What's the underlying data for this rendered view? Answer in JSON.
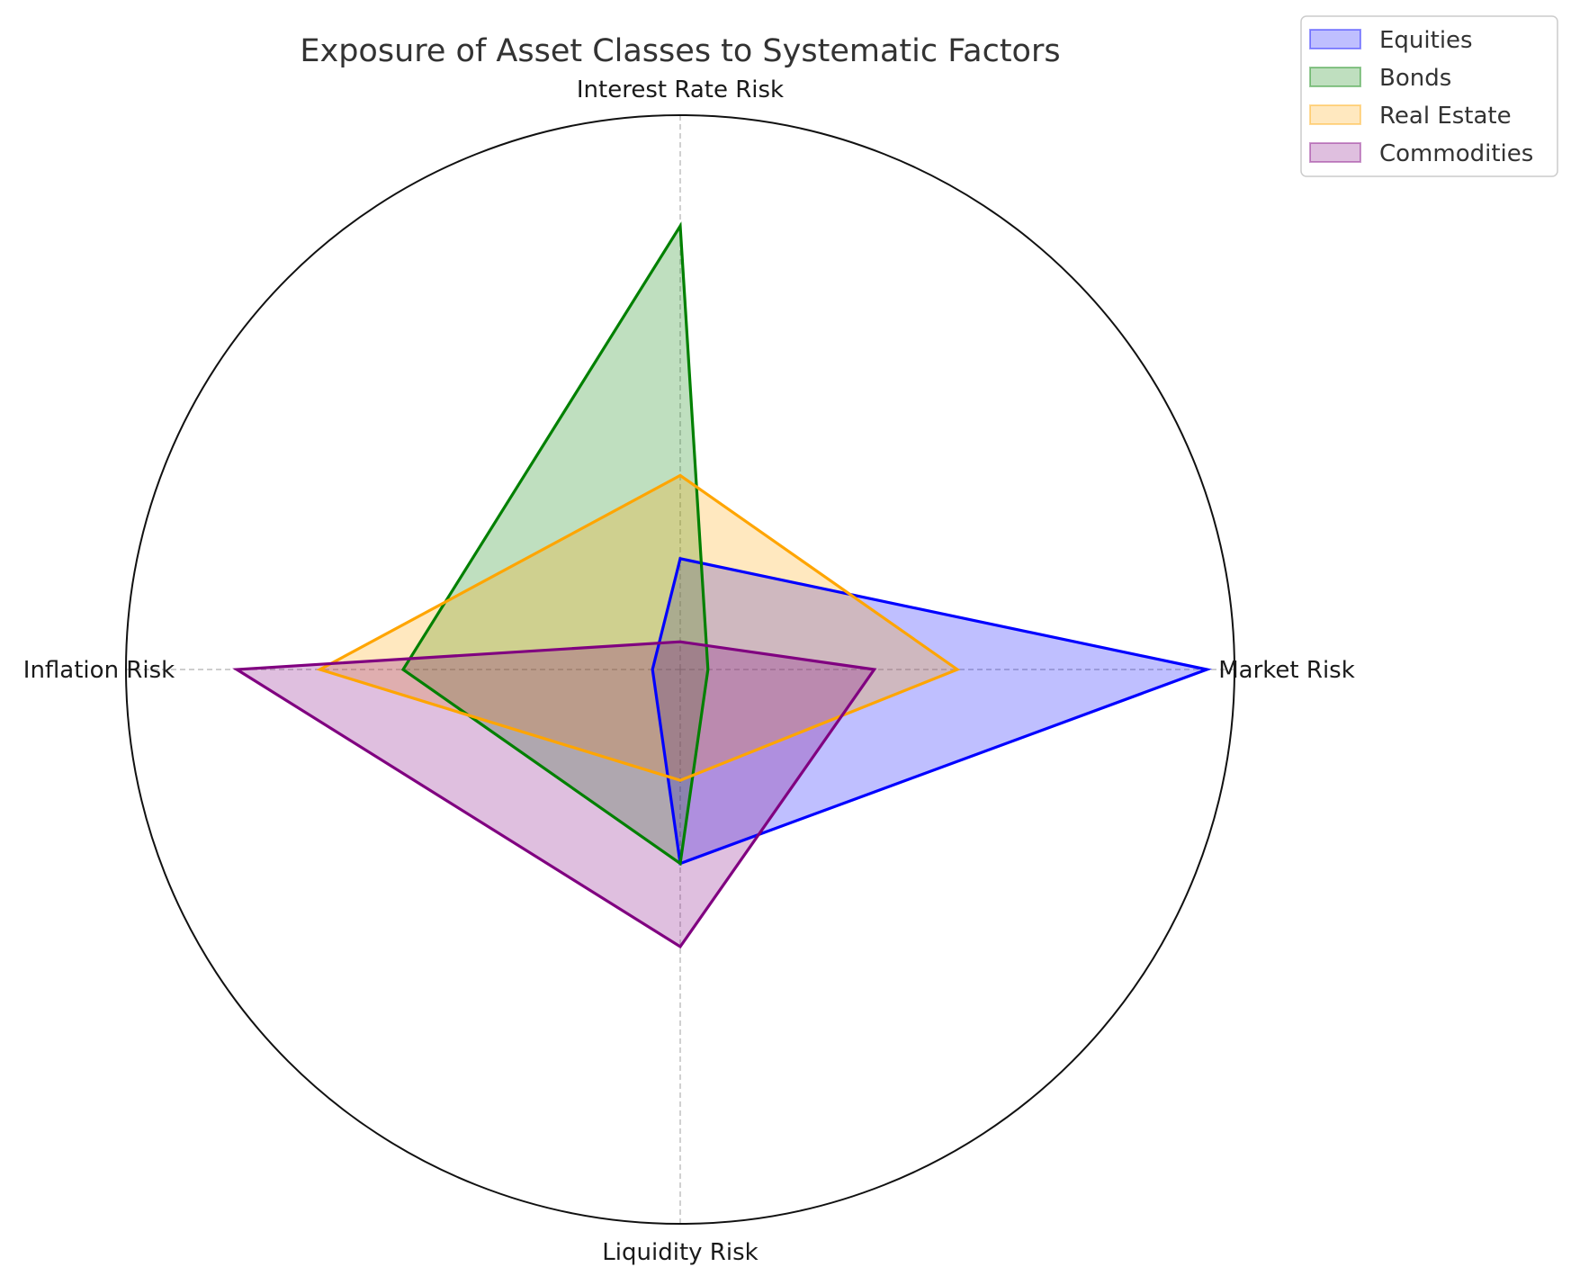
{
  "chart_data": {
    "type": "radar",
    "title": "Exposure of Asset Classes to Systematic Factors",
    "axes": [
      "Market Risk",
      "Interest Rate Risk",
      "Inflation Risk",
      "Liquidity Risk"
    ],
    "rlim": [
      0,
      1
    ],
    "grid": true,
    "legend_position": "top-right",
    "series": [
      {
        "name": "Equities",
        "color": "#0000ff",
        "values": [
          0.95,
          0.2,
          0.05,
          0.35
        ]
      },
      {
        "name": "Bonds",
        "color": "#008000",
        "values": [
          0.05,
          0.8,
          0.5,
          0.35
        ]
      },
      {
        "name": "Real Estate",
        "color": "#ffa500",
        "values": [
          0.5,
          0.35,
          0.65,
          0.2
        ]
      },
      {
        "name": "Commodities",
        "color": "#800080",
        "values": [
          0.35,
          0.05,
          0.8,
          0.5
        ]
      }
    ]
  }
}
